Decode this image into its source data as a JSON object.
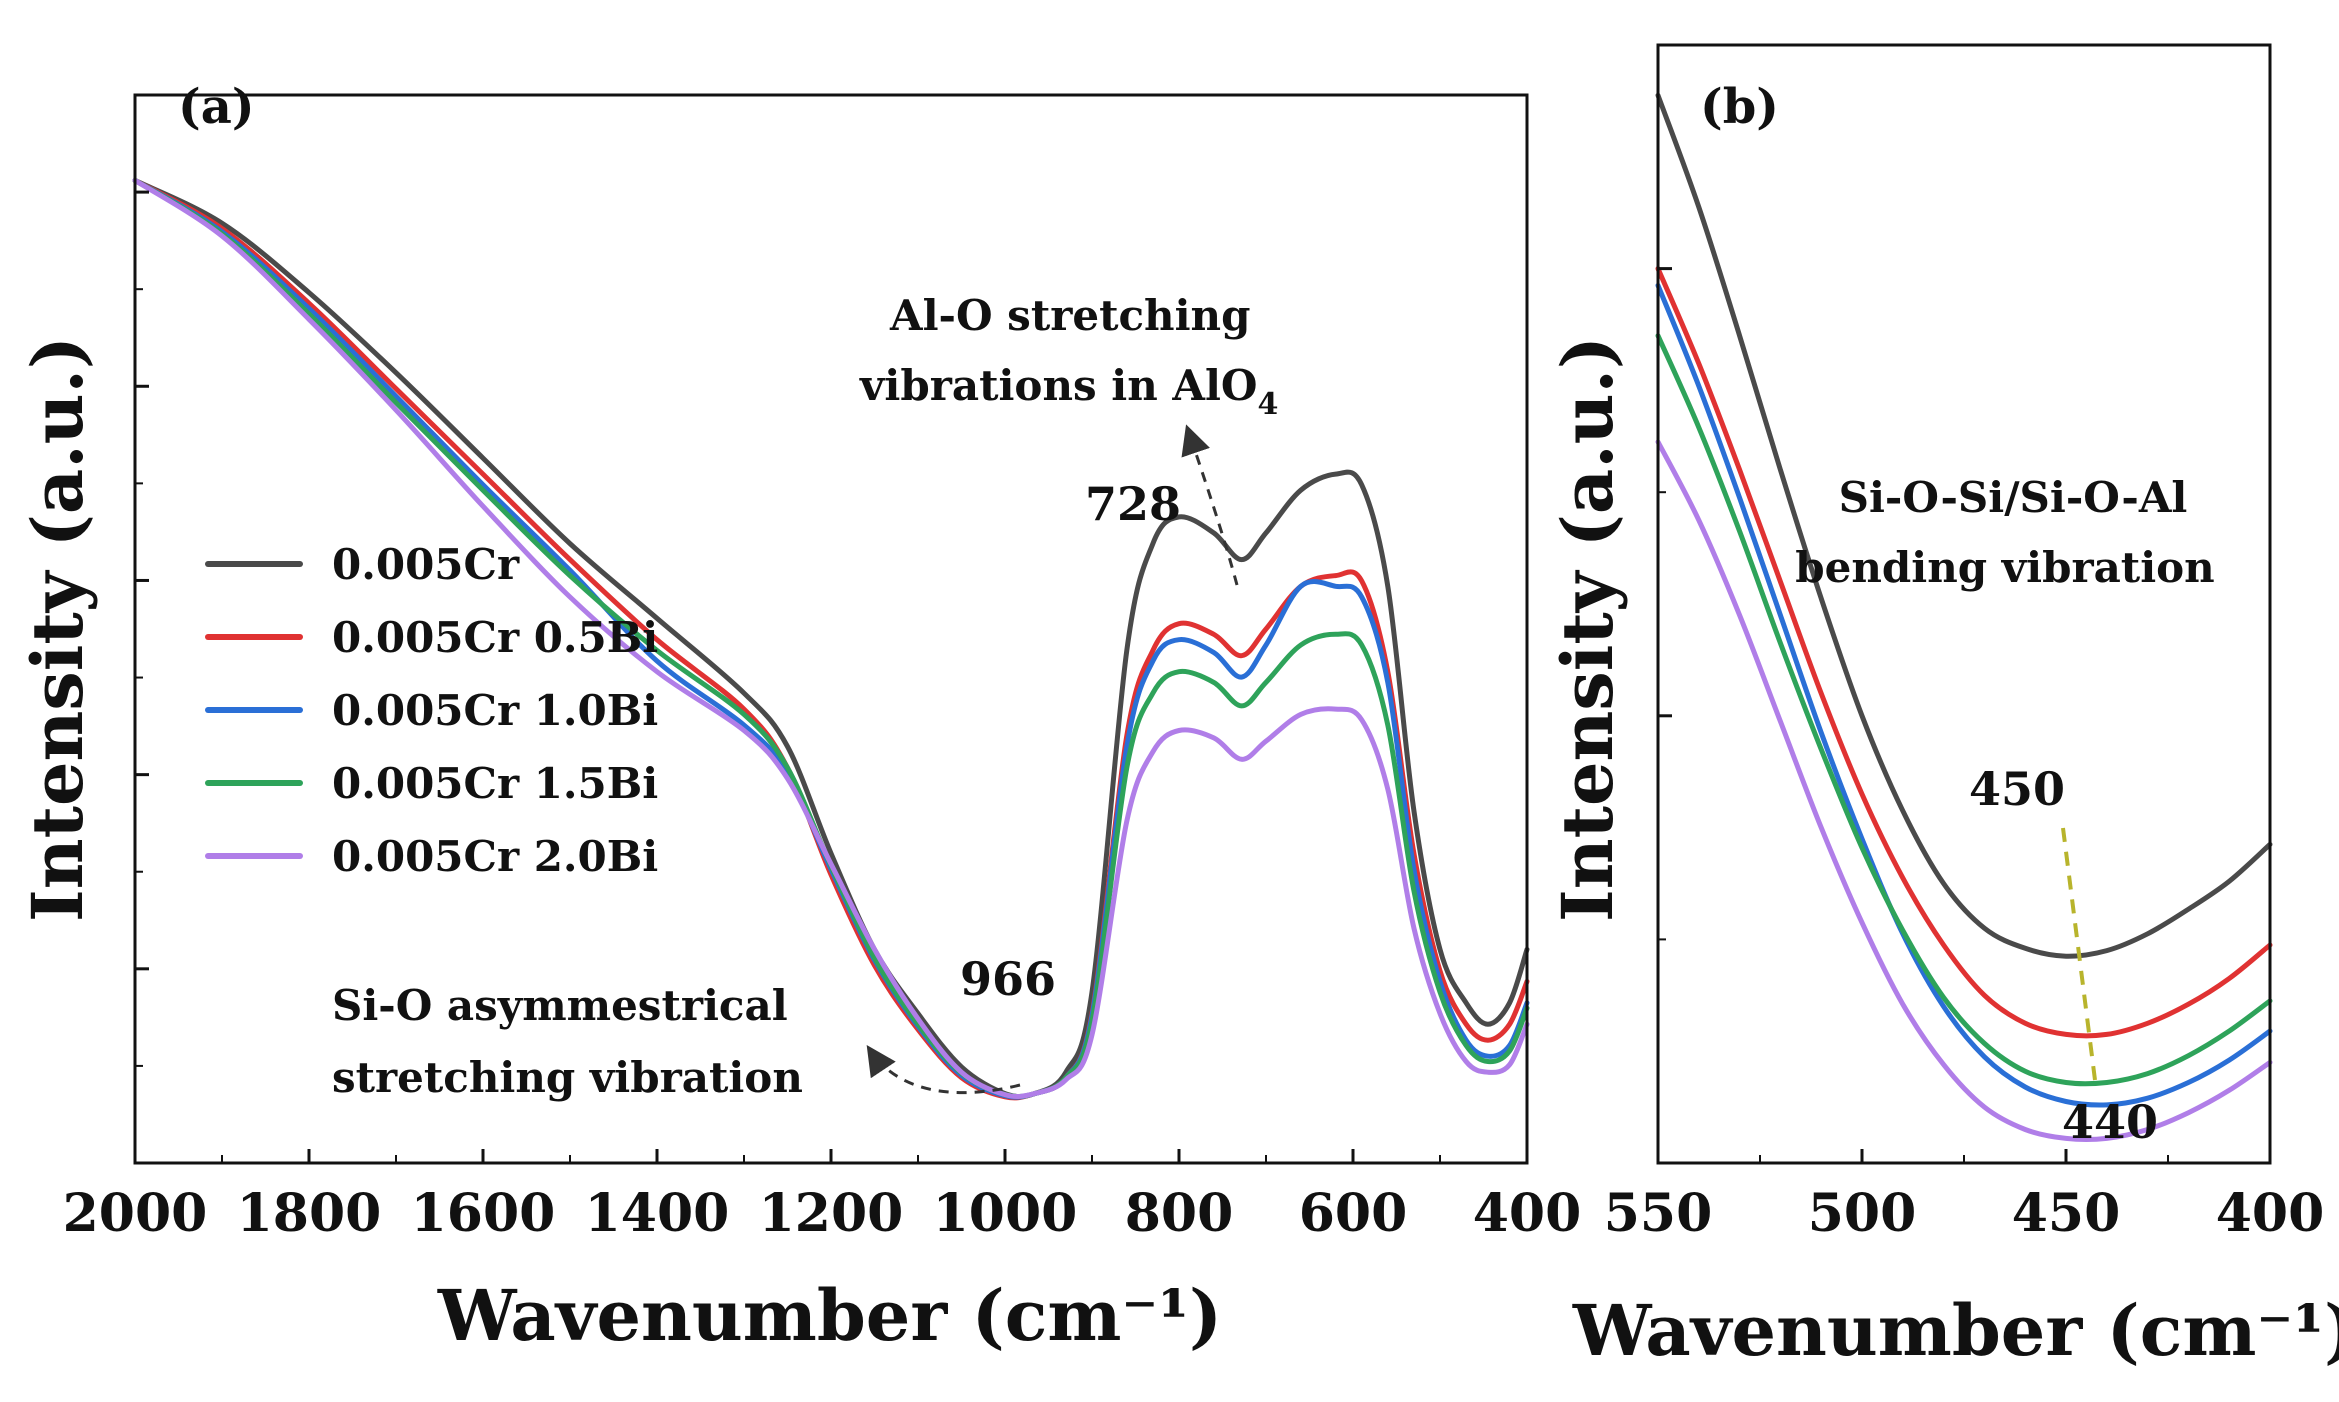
{
  "chart_data": [
    {
      "panel": "(a)",
      "type": "line",
      "xlabel": "Wavenumber (cm⁻¹)",
      "ylabel": "Intensity (a.u.)",
      "xlim": [
        2000,
        400
      ],
      "ylim": [
        0,
        1
      ],
      "x_ticks": [
        "2000",
        "1800",
        "1600",
        "1400",
        "1200",
        "1000",
        "800",
        "600",
        "400"
      ],
      "legend_position": "middle-left",
      "series": [
        {
          "name": "0.005Cr",
          "color": "#4a4a4a",
          "x": [
            2000,
            1900,
            1800,
            1700,
            1600,
            1500,
            1400,
            1300,
            1250,
            1200,
            1150,
            1100,
            1050,
            1000,
            966,
            930,
            900,
            860,
            830,
            800,
            760,
            728,
            700,
            660,
            620,
            590,
            560,
            530,
            500,
            470,
            445,
            420,
            400
          ],
          "y": [
            0.92,
            0.88,
            0.815,
            0.74,
            0.66,
            0.58,
            0.51,
            0.44,
            0.39,
            0.29,
            0.2,
            0.14,
            0.09,
            0.065,
            0.065,
            0.085,
            0.16,
            0.48,
            0.58,
            0.605,
            0.59,
            0.565,
            0.59,
            0.63,
            0.645,
            0.635,
            0.54,
            0.33,
            0.2,
            0.15,
            0.13,
            0.15,
            0.2
          ]
        },
        {
          "name": "0.005Cr 0.5Bi",
          "color": "#e03232",
          "x": [
            2000,
            1900,
            1800,
            1700,
            1600,
            1500,
            1400,
            1300,
            1250,
            1200,
            1150,
            1100,
            1050,
            1000,
            966,
            930,
            900,
            860,
            830,
            800,
            760,
            728,
            700,
            660,
            620,
            590,
            560,
            530,
            500,
            470,
            445,
            420,
            400
          ],
          "y": [
            0.92,
            0.875,
            0.805,
            0.725,
            0.645,
            0.565,
            0.49,
            0.425,
            0.37,
            0.27,
            0.185,
            0.125,
            0.08,
            0.062,
            0.065,
            0.08,
            0.14,
            0.4,
            0.48,
            0.505,
            0.495,
            0.475,
            0.5,
            0.54,
            0.55,
            0.545,
            0.46,
            0.29,
            0.18,
            0.13,
            0.115,
            0.13,
            0.17
          ]
        },
        {
          "name": "0.005Cr 1.0Bi",
          "color": "#2a6fd6",
          "x": [
            2000,
            1900,
            1800,
            1700,
            1600,
            1500,
            1400,
            1300,
            1250,
            1200,
            1150,
            1100,
            1050,
            1000,
            966,
            930,
            900,
            860,
            830,
            800,
            760,
            728,
            700,
            660,
            620,
            590,
            560,
            530,
            500,
            470,
            445,
            420,
            400
          ],
          "y": [
            0.92,
            0.872,
            0.8,
            0.718,
            0.635,
            0.555,
            0.47,
            0.41,
            0.365,
            0.275,
            0.19,
            0.128,
            0.082,
            0.063,
            0.065,
            0.08,
            0.138,
            0.39,
            0.47,
            0.49,
            0.478,
            0.455,
            0.485,
            0.54,
            0.54,
            0.53,
            0.45,
            0.275,
            0.17,
            0.115,
            0.1,
            0.11,
            0.15
          ]
        },
        {
          "name": "0.005Cr 1.5Bi",
          "color": "#2ea35a",
          "x": [
            2000,
            1900,
            1800,
            1700,
            1600,
            1500,
            1400,
            1300,
            1250,
            1200,
            1150,
            1100,
            1050,
            1000,
            966,
            930,
            900,
            860,
            830,
            800,
            760,
            728,
            700,
            660,
            620,
            590,
            560,
            530,
            500,
            470,
            445,
            420,
            400
          ],
          "y": [
            0.92,
            0.87,
            0.795,
            0.712,
            0.63,
            0.55,
            0.48,
            0.42,
            0.37,
            0.278,
            0.192,
            0.13,
            0.084,
            0.064,
            0.065,
            0.08,
            0.133,
            0.37,
            0.44,
            0.46,
            0.45,
            0.428,
            0.45,
            0.485,
            0.495,
            0.485,
            0.41,
            0.255,
            0.16,
            0.11,
            0.095,
            0.105,
            0.145
          ]
        },
        {
          "name": "0.005Cr 2.0Bi",
          "color": "#b07ee8",
          "x": [
            2000,
            1900,
            1800,
            1700,
            1600,
            1500,
            1400,
            1300,
            1250,
            1200,
            1150,
            1100,
            1050,
            1000,
            966,
            930,
            900,
            860,
            830,
            800,
            760,
            728,
            700,
            660,
            620,
            590,
            560,
            530,
            500,
            470,
            445,
            420,
            400
          ],
          "y": [
            0.92,
            0.868,
            0.79,
            0.705,
            0.615,
            0.53,
            0.46,
            0.405,
            0.36,
            0.28,
            0.2,
            0.135,
            0.085,
            0.064,
            0.065,
            0.078,
            0.12,
            0.32,
            0.385,
            0.405,
            0.398,
            0.378,
            0.395,
            0.42,
            0.425,
            0.415,
            0.35,
            0.22,
            0.14,
            0.095,
            0.085,
            0.092,
            0.13
          ]
        }
      ],
      "annotations": [
        {
          "text": "Al-O stretching",
          "line": 1
        },
        {
          "text": "vibrations in AlO",
          "subscript": "4",
          "line": 2
        },
        {
          "text": "728"
        },
        {
          "text": "966"
        },
        {
          "text": "Si-O asymmestrical",
          "line": 1
        },
        {
          "text": "stretching vibration",
          "line": 2
        }
      ]
    },
    {
      "panel": "(b)",
      "type": "line",
      "xlabel": "Wavenumber (cm⁻¹)",
      "ylabel": "Intensity (a.u.)",
      "xlim": [
        550,
        400
      ],
      "ylim": [
        0,
        1
      ],
      "x_ticks": [
        "550",
        "500",
        "450",
        "400"
      ],
      "series": [
        {
          "name": "0.005Cr",
          "color": "#4a4a4a",
          "x": [
            550,
            540,
            530,
            520,
            510,
            500,
            490,
            480,
            470,
            460,
            450,
            440,
            430,
            420,
            410,
            400
          ],
          "y": [
            0.955,
            0.855,
            0.74,
            0.62,
            0.505,
            0.4,
            0.315,
            0.25,
            0.21,
            0.192,
            0.185,
            0.19,
            0.205,
            0.227,
            0.252,
            0.285
          ]
        },
        {
          "name": "0.005Cr 0.5Bi",
          "color": "#e03232",
          "x": [
            550,
            540,
            530,
            520,
            510,
            500,
            490,
            480,
            470,
            460,
            450,
            440,
            430,
            420,
            410,
            400
          ],
          "y": [
            0.8,
            0.715,
            0.62,
            0.52,
            0.42,
            0.33,
            0.255,
            0.195,
            0.15,
            0.125,
            0.115,
            0.115,
            0.125,
            0.142,
            0.165,
            0.195
          ]
        },
        {
          "name": "0.005Cr 1.0Bi",
          "color": "#2a6fd6",
          "x": [
            550,
            540,
            530,
            520,
            510,
            500,
            490,
            480,
            470,
            460,
            450,
            440,
            430,
            420,
            410,
            400
          ],
          "y": [
            0.785,
            0.695,
            0.595,
            0.49,
            0.385,
            0.29,
            0.205,
            0.14,
            0.095,
            0.068,
            0.055,
            0.052,
            0.058,
            0.072,
            0.092,
            0.118
          ]
        },
        {
          "name": "0.005Cr 1.5Bi",
          "color": "#2ea35a",
          "x": [
            550,
            540,
            530,
            520,
            510,
            500,
            490,
            480,
            470,
            460,
            450,
            440,
            430,
            420,
            410,
            400
          ],
          "y": [
            0.74,
            0.658,
            0.565,
            0.465,
            0.37,
            0.282,
            0.208,
            0.148,
            0.107,
            0.082,
            0.072,
            0.072,
            0.08,
            0.096,
            0.118,
            0.145
          ]
        },
        {
          "name": "0.005Cr 2.0Bi",
          "color": "#b07ee8",
          "x": [
            550,
            540,
            530,
            520,
            510,
            500,
            490,
            480,
            470,
            460,
            450,
            440,
            430,
            420,
            410,
            400
          ],
          "y": [
            0.645,
            0.575,
            0.49,
            0.395,
            0.3,
            0.215,
            0.142,
            0.088,
            0.05,
            0.03,
            0.022,
            0.022,
            0.03,
            0.045,
            0.065,
            0.09
          ]
        }
      ],
      "annotations": [
        {
          "text": "Si-O-Si/Si-O-Al",
          "line": 1
        },
        {
          "text": "bending vibration",
          "line": 2
        },
        {
          "text": "450"
        },
        {
          "text": "440"
        }
      ]
    }
  ]
}
